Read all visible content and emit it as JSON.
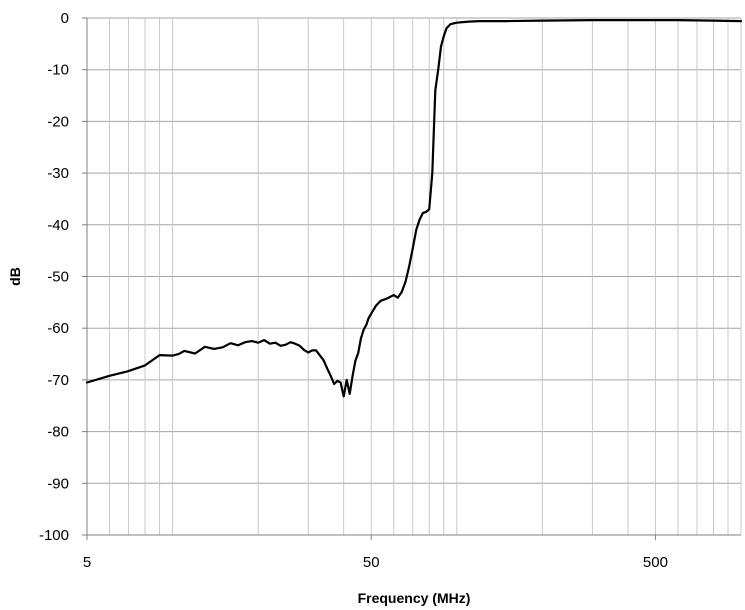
{
  "chart_data": {
    "type": "line",
    "title": "",
    "xlabel": "Frequency (MHz)",
    "ylabel": "dB",
    "x_scale": "log",
    "xlim": [
      5,
      1000
    ],
    "ylim": [
      -100,
      0
    ],
    "x_ticks": [
      5,
      50,
      500
    ],
    "x_tick_labels": [
      "5",
      "50",
      "500"
    ],
    "y_ticks": [
      0,
      -10,
      -20,
      -30,
      -40,
      -50,
      -60,
      -70,
      -80,
      -90,
      -100
    ],
    "y_tick_labels": [
      "0",
      "-10",
      "-20",
      "-30",
      "-40",
      "-50",
      "-60",
      "-70",
      "-80",
      "-90",
      "-100"
    ],
    "grid": true,
    "legend": "none",
    "series": [
      {
        "color": "#000000",
        "x": [
          5,
          6,
          7,
          8,
          9,
          10,
          10.5,
          11,
          12,
          13,
          14,
          15,
          16,
          17,
          18,
          19,
          20,
          21,
          22,
          23,
          24,
          25,
          26,
          27,
          28,
          29,
          30,
          31,
          32,
          34,
          35,
          36,
          37,
          38,
          39,
          40,
          41,
          42,
          43,
          44,
          45,
          46,
          47,
          48,
          49,
          50,
          52,
          54,
          56,
          58,
          60,
          62,
          64,
          66,
          68,
          70,
          72,
          74,
          76,
          78,
          80,
          82,
          84,
          86,
          88,
          90,
          92,
          95,
          100,
          105,
          110,
          120,
          150,
          200,
          300,
          400,
          500,
          600,
          800,
          1000
        ],
        "y": [
          -70.5,
          -69.2,
          -68.3,
          -67.2,
          -65.2,
          -65.3,
          -65.0,
          -64.4,
          -64.9,
          -63.6,
          -64.0,
          -63.7,
          -62.9,
          -63.3,
          -62.7,
          -62.5,
          -62.8,
          -62.3,
          -63.0,
          -62.8,
          -63.4,
          -63.2,
          -62.7,
          -63.0,
          -63.4,
          -64.2,
          -64.7,
          -64.3,
          -64.3,
          -66.2,
          -67.8,
          -69.2,
          -70.8,
          -70.2,
          -70.5,
          -73.2,
          -70.0,
          -72.7,
          -69.2,
          -66.3,
          -64.8,
          -62.0,
          -60.3,
          -59.4,
          -58.0,
          -57.2,
          -55.6,
          -54.7,
          -54.4,
          -54.0,
          -53.6,
          -54.1,
          -53.0,
          -51.0,
          -48.0,
          -44.5,
          -41.0,
          -39.0,
          -37.7,
          -37.5,
          -37.0,
          -30.0,
          -14.0,
          -10.0,
          -5.5,
          -3.5,
          -2.0,
          -1.2,
          -0.9,
          -0.8,
          -0.7,
          -0.6,
          -0.6,
          -0.5,
          -0.4,
          -0.4,
          -0.4,
          -0.4,
          -0.5,
          -0.6
        ]
      }
    ]
  }
}
